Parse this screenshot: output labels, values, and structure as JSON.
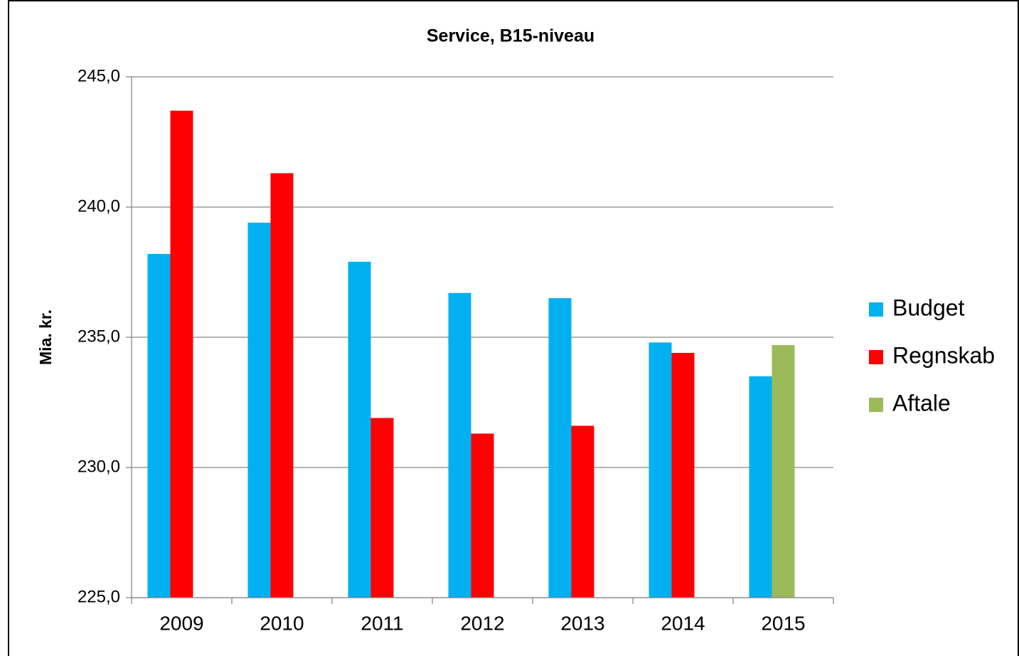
{
  "chart_data": {
    "type": "bar",
    "title": "Service, B15-niveau",
    "y_label": "Mia. kr.",
    "categories": [
      "2009",
      "2010",
      "2011",
      "2012",
      "2013",
      "2014",
      "2015"
    ],
    "series": [
      {
        "name": "Budget",
        "color": "#00b0f0",
        "values": [
          238.2,
          239.4,
          237.9,
          236.7,
          236.5,
          234.8,
          233.5
        ]
      },
      {
        "name": "Regnskab",
        "color": "#ff0000",
        "values": [
          243.7,
          241.3,
          231.9,
          231.3,
          231.6,
          234.4,
          null
        ]
      },
      {
        "name": "Aftale",
        "color": "#9bbb59",
        "values": [
          null,
          null,
          null,
          null,
          null,
          null,
          234.7
        ]
      }
    ],
    "ylim": [
      225,
      245
    ],
    "yticks": [
      {
        "value": 225,
        "label": "225,0"
      },
      {
        "value": 230,
        "label": "230,0"
      },
      {
        "value": 235,
        "label": "235,0"
      },
      {
        "value": 240,
        "label": "240,0"
      },
      {
        "value": 245,
        "label": "245,0"
      }
    ],
    "grid": true,
    "legend": "right"
  }
}
